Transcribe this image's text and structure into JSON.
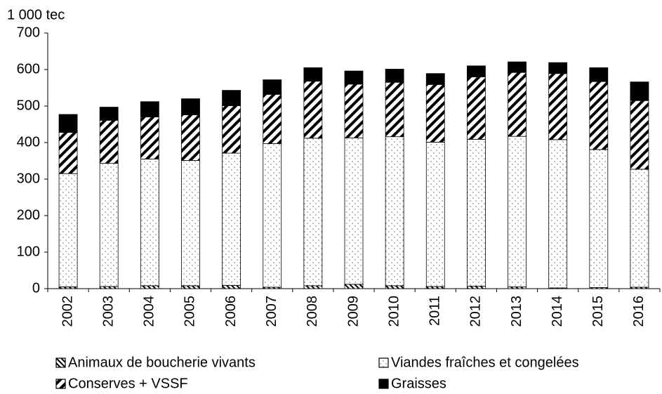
{
  "chart_data": {
    "type": "stacked-bar",
    "y_label": "1 000 tec",
    "categories": [
      "2002",
      "2003",
      "2004",
      "2005",
      "2006",
      "2007",
      "2008",
      "2009",
      "2010",
      "2011",
      "2012",
      "2013",
      "2014",
      "2015",
      "2016"
    ],
    "series": [
      {
        "name": "Animaux de boucherie vivants",
        "color": "#000000",
        "pattern": "stripes",
        "values": [
          5,
          6,
          8,
          8,
          9,
          4,
          8,
          12,
          8,
          6,
          7,
          5,
          2,
          3,
          4
        ]
      },
      {
        "name": "Viandes fraîches et congelées",
        "color": "#000000",
        "pattern": "dots",
        "values": [
          310,
          337,
          347,
          343,
          362,
          393,
          404,
          401,
          408,
          395,
          402,
          412,
          406,
          378,
          323
        ]
      },
      {
        "name": "Conserves + VSSF",
        "color": "#000000",
        "pattern": "hatch",
        "values": [
          113,
          118,
          115,
          125,
          130,
          135,
          156,
          147,
          149,
          158,
          171,
          175,
          181,
          186,
          188
        ]
      },
      {
        "name": "Graisses",
        "color": "#000000",
        "pattern": "solid",
        "values": [
          49,
          36,
          42,
          44,
          42,
          40,
          37,
          36,
          36,
          30,
          30,
          29,
          30,
          38,
          51
        ]
      }
    ],
    "ylim": [
      0,
      700
    ],
    "yticks": [
      0,
      100,
      200,
      300,
      400,
      500,
      600,
      700
    ],
    "grid": false,
    "legend": "bottom"
  }
}
